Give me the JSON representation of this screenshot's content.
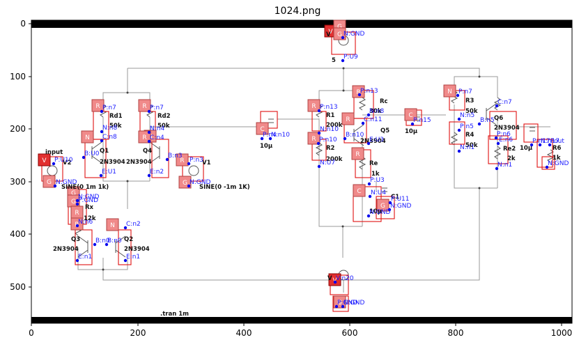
{
  "figure": {
    "title": "1024.png",
    "x_ticks": [
      "0",
      "200",
      "400",
      "600",
      "800",
      "1000"
    ],
    "y_ticks": [
      "0",
      "100",
      "200",
      "300",
      "400",
      "500"
    ]
  },
  "schematic": {
    "directive": ".tran 1m",
    "component_labels": [
      {
        "key": "input",
        "text": "input"
      },
      {
        "key": "v2",
        "text": "V2"
      },
      {
        "key": "sine1",
        "text": "SINE(0 1m 1k)"
      },
      {
        "key": "rx",
        "text": "Rx"
      },
      {
        "key": "rx_val",
        "text": "12k"
      },
      {
        "key": "q3",
        "text": "Q3"
      },
      {
        "key": "q3_model",
        "text": "2N3904"
      },
      {
        "key": "q2",
        "text": "Q2"
      },
      {
        "key": "q2_model",
        "text": "2N3904"
      },
      {
        "key": "rd1",
        "text": "Rd1"
      },
      {
        "key": "rd1_val",
        "text": "50k"
      },
      {
        "key": "q1",
        "text": "Q1"
      },
      {
        "key": "q1_model",
        "text": "2N3904"
      },
      {
        "key": "rd2",
        "text": "Rd2"
      },
      {
        "key": "rd2_val",
        "text": "50k"
      },
      {
        "key": "q4",
        "text": "Q4"
      },
      {
        "key": "q4_model",
        "text": "2N3904"
      },
      {
        "key": "v1",
        "text": "V1"
      },
      {
        "key": "sine2",
        "text": "SINE(0 -1m 1K)"
      },
      {
        "key": "c3_val",
        "text": "10µ"
      },
      {
        "key": "vtop",
        "text": "V"
      },
      {
        "key": "five",
        "text": "5"
      },
      {
        "key": "r1",
        "text": "R1"
      },
      {
        "key": "r1_val",
        "text": "200k"
      },
      {
        "key": "r2",
        "text": "R2"
      },
      {
        "key": "r2_val",
        "text": "200k"
      },
      {
        "key": "rc",
        "text": "Rc"
      },
      {
        "key": "rc_val",
        "text": "30k"
      },
      {
        "key": "q5",
        "text": "Q5"
      },
      {
        "key": "q5_model",
        "text": "2N3904"
      },
      {
        "key": "re",
        "text": "Re"
      },
      {
        "key": "re_val",
        "text": "1k"
      },
      {
        "key": "c1",
        "text": "C1"
      },
      {
        "key": "c1_val",
        "text": "10µ"
      },
      {
        "key": "c2_val",
        "text": "10µ"
      },
      {
        "key": "r3",
        "text": "R3"
      },
      {
        "key": "r3_val",
        "text": "50k"
      },
      {
        "key": "r4",
        "text": "R4"
      },
      {
        "key": "r4_val",
        "text": "50k"
      },
      {
        "key": "q6",
        "text": "Q6"
      },
      {
        "key": "q6_model",
        "text": "2N3904"
      },
      {
        "key": "re2",
        "text": "Re2"
      },
      {
        "key": "re2_val",
        "text": "2k"
      },
      {
        "key": "c4",
        "text": "C4"
      },
      {
        "key": "c4_val",
        "text": "10µ"
      },
      {
        "key": "r6",
        "text": "R6"
      },
      {
        "key": "r6_val",
        "text": "1k"
      },
      {
        "key": "v_bot",
        "text": "V"
      }
    ],
    "net_labels": [
      {
        "key": "n1",
        "text": "P:n7"
      },
      {
        "key": "n2",
        "text": "N:n8"
      },
      {
        "key": "n3",
        "text": "C:n8"
      },
      {
        "key": "n4",
        "text": "B:U0"
      },
      {
        "key": "n5",
        "text": "E:U1"
      },
      {
        "key": "n6",
        "text": "P:U10"
      },
      {
        "key": "n7",
        "text": "N:GND"
      },
      {
        "key": "n8",
        "text": "P:n7"
      },
      {
        "key": "n9",
        "text": "N:n4"
      },
      {
        "key": "n10",
        "text": "C:n4"
      },
      {
        "key": "n11",
        "text": "B:n3"
      },
      {
        "key": "n12",
        "text": "E:n2"
      },
      {
        "key": "n13",
        "text": "P:n3"
      },
      {
        "key": "n14",
        "text": "N:GND"
      },
      {
        "key": "n15",
        "text": "N:GND"
      },
      {
        "key": "n16",
        "text": "P:GND"
      },
      {
        "key": "n17",
        "text": "N:n6"
      },
      {
        "key": "n18",
        "text": "C:n2"
      },
      {
        "key": "n19",
        "text": "B:n0"
      },
      {
        "key": "n20",
        "text": "B:n0"
      },
      {
        "key": "n21",
        "text": "E:n1"
      },
      {
        "key": "n22",
        "text": "E:n1"
      },
      {
        "key": "n23",
        "text": "P:n4"
      },
      {
        "key": "n24",
        "text": "N:n10"
      },
      {
        "key": "n25",
        "text": "N:GND"
      },
      {
        "key": "n26",
        "text": "P:U9"
      },
      {
        "key": "n27",
        "text": "P:n13"
      },
      {
        "key": "n28",
        "text": "P:n13"
      },
      {
        "key": "n29",
        "text": "N:n8"
      },
      {
        "key": "n30",
        "text": "N:n10"
      },
      {
        "key": "n31",
        "text": "C:n11"
      },
      {
        "key": "n32",
        "text": "B:n10"
      },
      {
        "key": "n33",
        "text": "E:U3"
      },
      {
        "key": "n34",
        "text": "P:n10"
      },
      {
        "key": "n35",
        "text": "N:U7"
      },
      {
        "key": "n36",
        "text": "P:U3"
      },
      {
        "key": "n37",
        "text": "N:U4"
      },
      {
        "key": "n38",
        "text": "P:U11"
      },
      {
        "key": "n39",
        "text": "N:GND"
      },
      {
        "key": "n40",
        "text": "N:GND"
      },
      {
        "key": "n41",
        "text": "P:n15"
      },
      {
        "key": "n42",
        "text": "P:n7"
      },
      {
        "key": "n43",
        "text": "C:n7"
      },
      {
        "key": "n44",
        "text": "N:n5"
      },
      {
        "key": "n45",
        "text": "P:n5"
      },
      {
        "key": "n46",
        "text": "B:n5"
      },
      {
        "key": "n47",
        "text": "E:n6"
      },
      {
        "key": "n48",
        "text": "P:n6"
      },
      {
        "key": "n49",
        "text": "N:n1"
      },
      {
        "key": "n50",
        "text": "N:n1"
      },
      {
        "key": "n51",
        "text": "P:n17"
      },
      {
        "key": "n52",
        "text": "N:n17"
      },
      {
        "key": "n53",
        "text": "Pout"
      },
      {
        "key": "n54",
        "text": "N:GND"
      },
      {
        "key": "n55",
        "text": "V:n20"
      },
      {
        "key": "n56",
        "text": "N:GND"
      },
      {
        "key": "n57",
        "text": "P:GND"
      }
    ],
    "part_tags": [
      {
        "key": "t1",
        "text": "V"
      },
      {
        "key": "t2",
        "text": "G"
      },
      {
        "key": "t3",
        "text": "G"
      },
      {
        "key": "t4",
        "text": "R"
      },
      {
        "key": "t5",
        "text": "N"
      },
      {
        "key": "t6",
        "text": "N"
      },
      {
        "key": "t7",
        "text": "R"
      },
      {
        "key": "t8",
        "text": "R"
      },
      {
        "key": "t9",
        "text": "N"
      },
      {
        "key": "t10",
        "text": "V"
      },
      {
        "key": "t11",
        "text": "G"
      },
      {
        "key": "t12",
        "text": "G"
      },
      {
        "key": "t13",
        "text": "G"
      },
      {
        "key": "t14",
        "text": "R"
      },
      {
        "key": "t15",
        "text": "R"
      },
      {
        "key": "t16",
        "text": "N"
      },
      {
        "key": "t17",
        "text": "R"
      },
      {
        "key": "t18",
        "text": "R"
      },
      {
        "key": "t19",
        "text": "R"
      },
      {
        "key": "t20",
        "text": "C"
      },
      {
        "key": "t21",
        "text": "G"
      },
      {
        "key": "t22",
        "text": "C"
      },
      {
        "key": "t23",
        "text": "R"
      },
      {
        "key": "t24",
        "text": "R"
      },
      {
        "key": "t25",
        "text": "N"
      },
      {
        "key": "t26",
        "text": "R"
      },
      {
        "key": "t27",
        "text": "C"
      },
      {
        "key": "t28",
        "text": "G"
      },
      {
        "key": "t29",
        "text": "V"
      },
      {
        "key": "t30",
        "text": "G"
      }
    ]
  }
}
